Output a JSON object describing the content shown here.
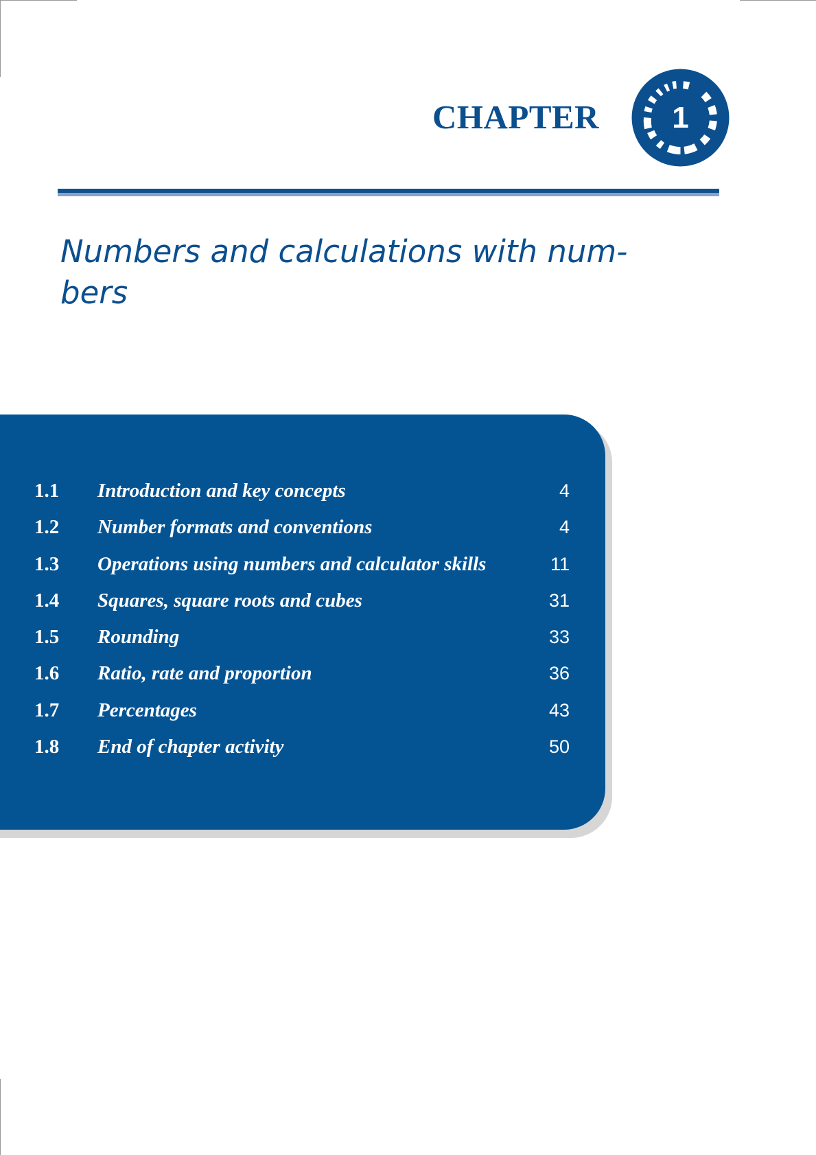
{
  "chapter": {
    "label": "CHAPTER",
    "number": "1",
    "title_line_1": "Numbers and calculations with num-",
    "title_line_2": "bers"
  },
  "colors": {
    "brand_blue": "#0b4f8f",
    "panel_blue": "#045494",
    "rule_shade": "#8aa1c9",
    "shadow_grey": "#d6d6d6",
    "text_on_panel": "#ffffff"
  },
  "badge_icon": "chapter-number-ring-icon",
  "contents": [
    {
      "number": "1.1",
      "title": "Introduction and key concepts",
      "page": "4"
    },
    {
      "number": "1.2",
      "title": "Number formats and conventions",
      "page": "4"
    },
    {
      "number": "1.3",
      "title": "Operations using numbers and calculator skills",
      "page": "11"
    },
    {
      "number": "1.4",
      "title": "Squares, square roots and cubes",
      "page": "31"
    },
    {
      "number": "1.5",
      "title": "Rounding",
      "page": "33"
    },
    {
      "number": "1.6",
      "title": "Ratio, rate and proportion",
      "page": "36"
    },
    {
      "number": "1.7",
      "title": "Percentages",
      "page": "43"
    },
    {
      "number": "1.8",
      "title": "End of chapter activity",
      "page": "50"
    }
  ]
}
